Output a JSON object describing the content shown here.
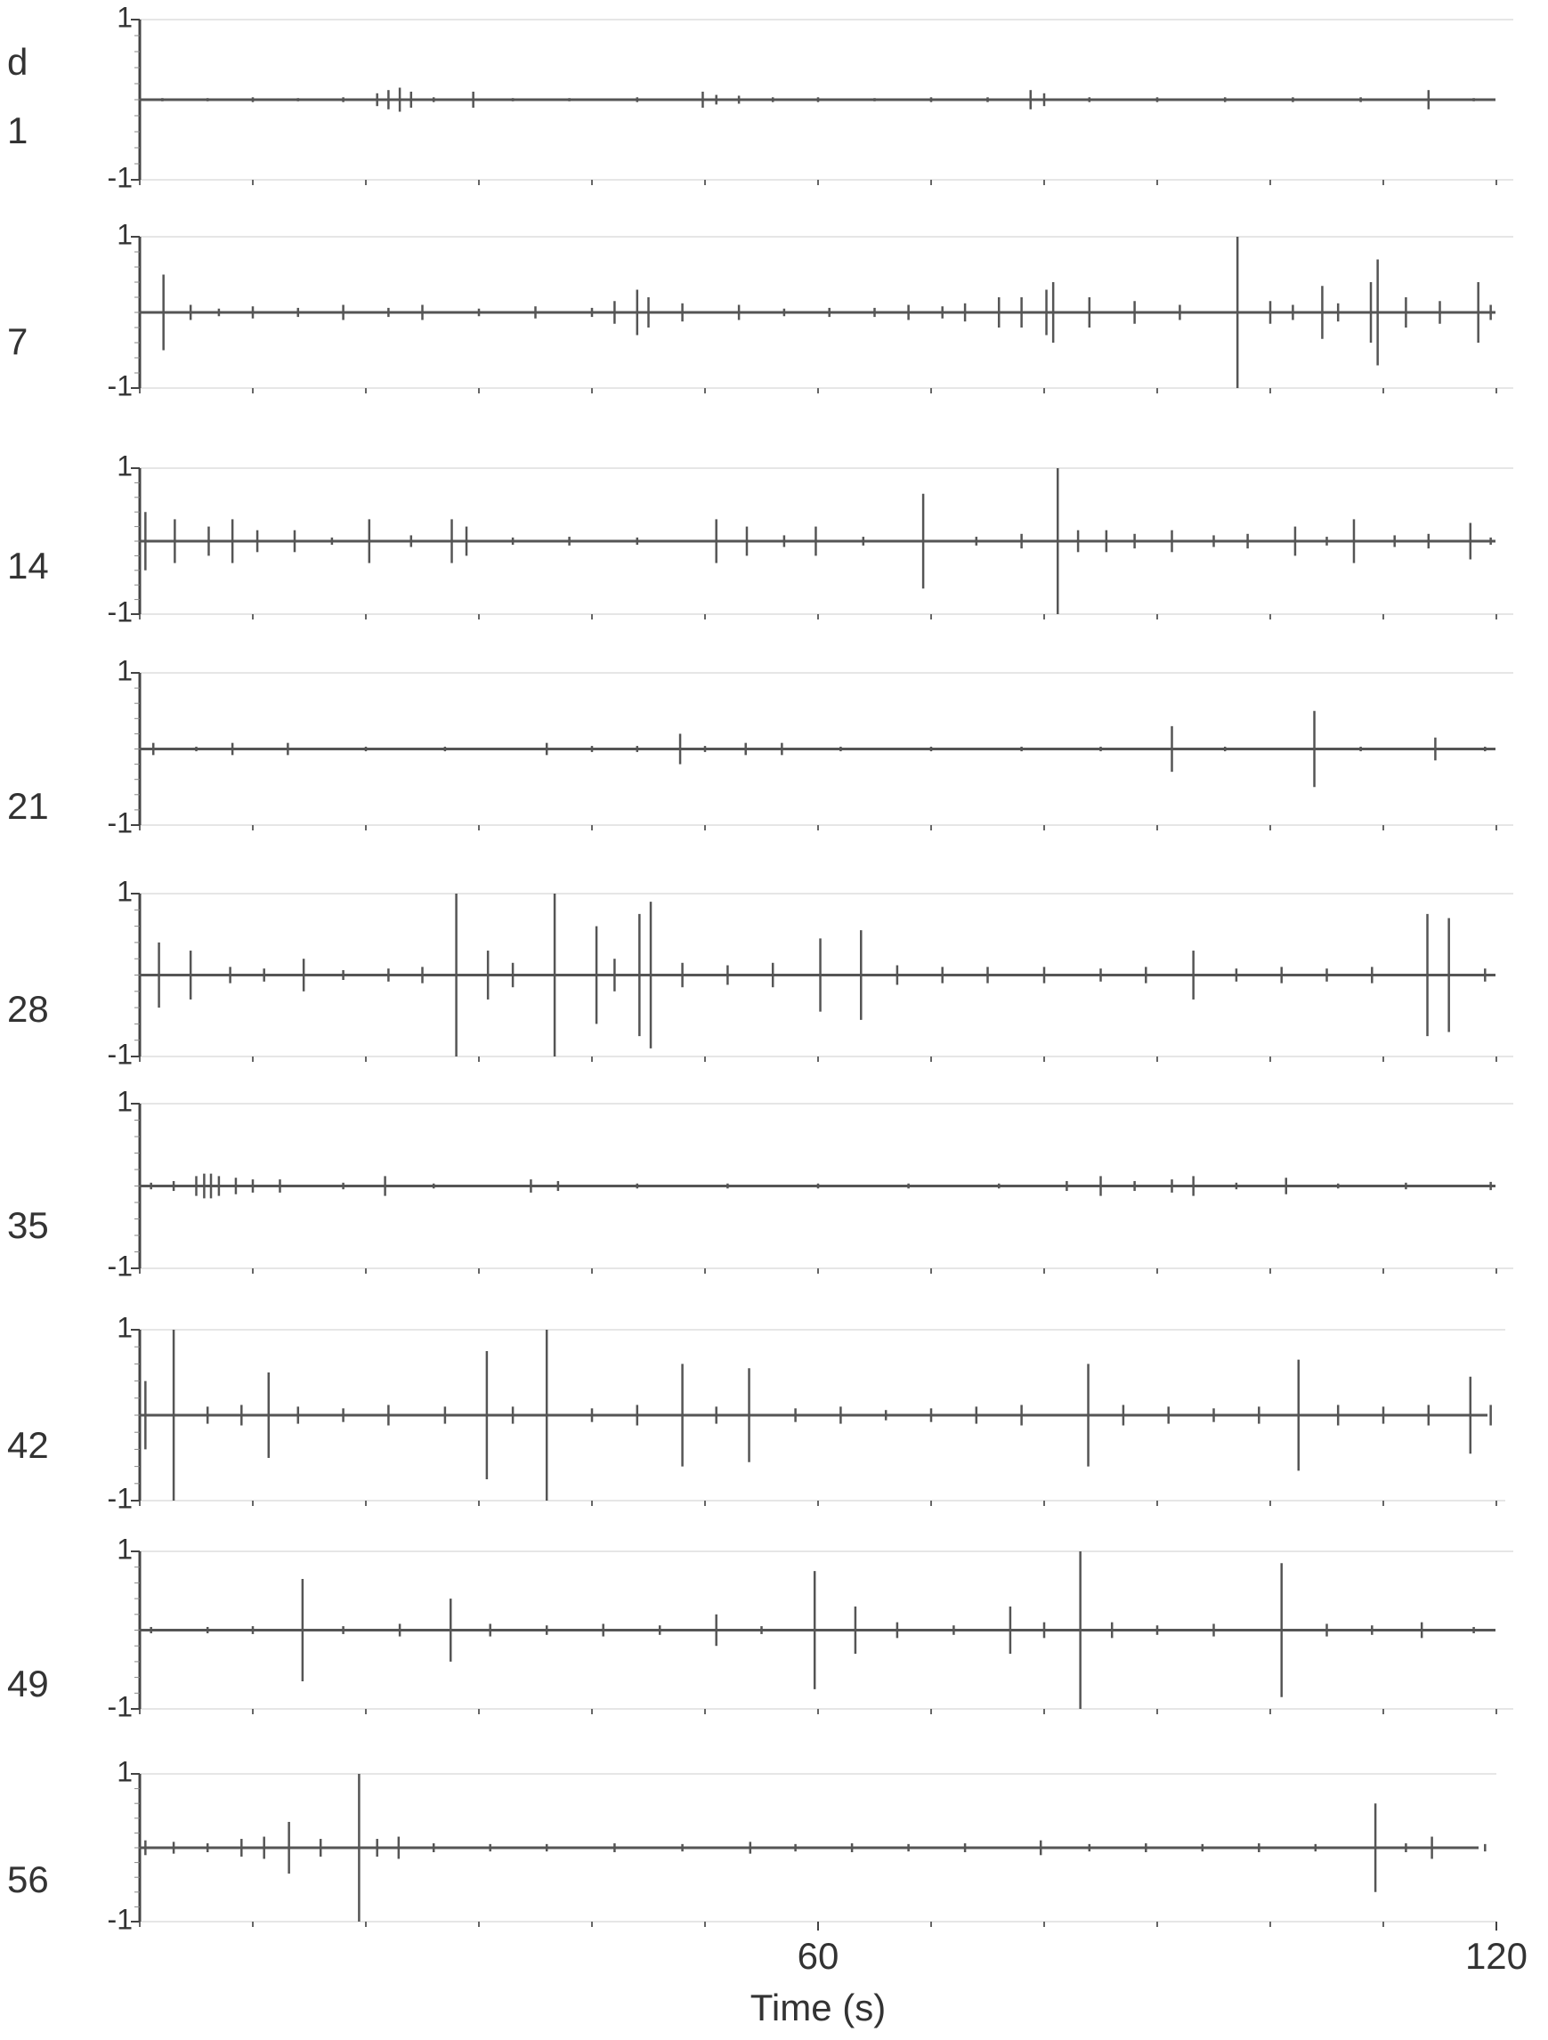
{
  "panel_label": "d",
  "chart_data": [
    {
      "type": "waveform",
      "title": "1",
      "color": "#555555",
      "xlim": [
        0,
        120
      ],
      "ylim": [
        -1,
        1
      ],
      "yticks": [
        -1,
        1
      ],
      "xminorticks": [
        0,
        10,
        20,
        30,
        40,
        50,
        60,
        70,
        80,
        90,
        100,
        110,
        120
      ],
      "x": [
        2,
        6,
        10,
        14,
        18,
        21,
        22,
        23,
        24,
        26,
        29.5,
        33,
        38,
        44,
        49.8,
        51,
        53,
        56,
        60,
        65,
        70,
        75,
        78.8,
        80,
        84,
        90,
        96,
        102,
        108,
        114,
        118
      ],
      "values": [
        0.02,
        0.02,
        0.03,
        0.02,
        0.03,
        0.08,
        0.12,
        0.15,
        0.1,
        0.03,
        0.1,
        0.02,
        0.02,
        0.03,
        0.1,
        0.06,
        0.05,
        0.03,
        0.03,
        0.02,
        0.03,
        0.03,
        0.12,
        0.08,
        0.03,
        0.03,
        0.03,
        0.03,
        0.03,
        0.12,
        0.02
      ]
    },
    {
      "type": "waveform",
      "title": "7",
      "color": "#555555",
      "xlim": [
        0,
        120
      ],
      "ylim": [
        -1,
        1
      ],
      "yticks": [
        -1,
        1
      ],
      "xminorticks": [
        0,
        10,
        20,
        30,
        40,
        50,
        60,
        70,
        80,
        90,
        100,
        110,
        120
      ],
      "x": [
        2.1,
        4.5,
        7,
        10,
        14,
        18,
        22,
        25,
        30,
        35,
        40,
        42,
        44,
        45,
        48,
        53,
        57,
        61,
        65,
        68,
        71,
        73,
        76,
        78,
        80.2,
        80.8,
        84,
        88,
        92,
        97.1,
        100,
        102,
        104.6,
        106,
        108.9,
        109.5,
        112,
        115,
        118.4,
        119.5
      ],
      "values": [
        0.5,
        0.1,
        0.05,
        0.08,
        0.06,
        0.1,
        0.06,
        0.1,
        0.05,
        0.08,
        0.06,
        0.15,
        0.3,
        0.2,
        0.12,
        0.1,
        0.05,
        0.06,
        0.06,
        0.1,
        0.08,
        0.12,
        0.2,
        0.2,
        0.3,
        0.4,
        0.2,
        0.15,
        0.1,
        1.0,
        0.15,
        0.1,
        0.35,
        0.12,
        0.4,
        0.7,
        0.2,
        0.15,
        0.4,
        0.1
      ]
    },
    {
      "type": "waveform",
      "title": "14",
      "color": "#555555",
      "xlim": [
        0,
        120
      ],
      "ylim": [
        -1,
        1
      ],
      "yticks": [
        -1,
        1
      ],
      "xminorticks": [
        0,
        10,
        20,
        30,
        40,
        50,
        60,
        70,
        80,
        90,
        100,
        110,
        120
      ],
      "x": [
        0.5,
        3.1,
        6.1,
        8.2,
        10.4,
        13.7,
        17,
        20.3,
        24,
        27.6,
        28.9,
        33,
        38,
        44,
        51,
        53.7,
        57,
        59.8,
        64,
        69.3,
        74,
        78,
        81.2,
        83,
        85.5,
        88,
        91.3,
        95,
        98,
        102.2,
        105,
        107.4,
        111,
        114,
        117.7,
        119.5
      ],
      "values": [
        0.4,
        0.3,
        0.2,
        0.3,
        0.15,
        0.15,
        0.05,
        0.3,
        0.08,
        0.3,
        0.2,
        0.05,
        0.06,
        0.05,
        0.3,
        0.2,
        0.08,
        0.2,
        0.06,
        0.65,
        0.06,
        0.1,
        1.0,
        0.15,
        0.15,
        0.1,
        0.15,
        0.08,
        0.1,
        0.2,
        0.06,
        0.3,
        0.08,
        0.1,
        0.25,
        0.05
      ]
    },
    {
      "type": "waveform",
      "title": "21",
      "color": "#555555",
      "xlim": [
        0,
        120
      ],
      "ylim": [
        -1,
        1
      ],
      "yticks": [
        -1,
        1
      ],
      "xminorticks": [
        0,
        10,
        20,
        30,
        40,
        50,
        60,
        70,
        80,
        90,
        100,
        110,
        120
      ],
      "x": [
        1.2,
        5,
        8.2,
        13.1,
        20,
        27,
        36,
        40,
        44,
        47.8,
        50,
        53.6,
        56.8,
        62,
        70,
        78,
        85,
        91.3,
        96,
        103.9,
        108,
        114.6,
        119
      ],
      "values": [
        0.08,
        0.03,
        0.08,
        0.08,
        0.03,
        0.03,
        0.08,
        0.04,
        0.04,
        0.2,
        0.04,
        0.08,
        0.08,
        0.03,
        0.03,
        0.03,
        0.03,
        0.3,
        0.03,
        0.5,
        0.03,
        0.15,
        0.03
      ]
    },
    {
      "type": "waveform",
      "title": "28",
      "color": "#555555",
      "xlim": [
        0,
        120
      ],
      "ylim": [
        -1,
        1
      ],
      "yticks": [
        -1,
        1
      ],
      "xminorticks": [
        0,
        10,
        20,
        30,
        40,
        50,
        60,
        70,
        80,
        90,
        100,
        110,
        120
      ],
      "x": [
        1.7,
        4.5,
        8,
        11,
        14.5,
        18,
        22,
        25,
        28,
        30.8,
        33,
        36.7,
        40.4,
        42,
        44.2,
        45.2,
        48,
        52,
        56,
        60.2,
        63.8,
        67,
        71,
        75,
        80,
        85,
        89,
        93.2,
        97,
        101,
        105,
        109,
        113.9,
        115.8,
        119
      ],
      "values": [
        0.4,
        0.3,
        0.1,
        0.08,
        0.2,
        0.06,
        0.08,
        0.1,
        1.0,
        0.3,
        0.15,
        1.0,
        0.6,
        0.2,
        0.75,
        0.9,
        0.15,
        0.12,
        0.15,
        0.45,
        0.55,
        0.12,
        0.1,
        0.1,
        0.1,
        0.08,
        0.1,
        0.3,
        0.08,
        0.1,
        0.08,
        0.1,
        0.75,
        0.7,
        0.08
      ]
    },
    {
      "type": "waveform",
      "title": "35",
      "color": "#555555",
      "xlim": [
        0,
        120
      ],
      "ylim": [
        -1,
        1
      ],
      "yticks": [
        -1,
        1
      ],
      "xminorticks": [
        0,
        10,
        20,
        30,
        40,
        50,
        60,
        70,
        80,
        90,
        100,
        110,
        120
      ],
      "x": [
        1,
        3,
        5,
        5.7,
        6.3,
        7,
        8.5,
        10,
        12.4,
        18,
        21.7,
        26,
        34.6,
        37,
        44,
        52,
        60,
        68,
        76,
        82,
        85,
        88,
        91.3,
        93.2,
        97,
        101.4,
        106,
        112,
        119.5
      ],
      "values": [
        0.04,
        0.06,
        0.12,
        0.15,
        0.15,
        0.12,
        0.1,
        0.08,
        0.08,
        0.04,
        0.12,
        0.03,
        0.08,
        0.06,
        0.03,
        0.03,
        0.03,
        0.03,
        0.03,
        0.06,
        0.12,
        0.06,
        0.08,
        0.12,
        0.04,
        0.1,
        0.03,
        0.04,
        0.05
      ]
    },
    {
      "type": "waveform",
      "title": "42",
      "color": "#555555",
      "xlim": [
        0,
        120
      ],
      "ylim": [
        -1,
        1
      ],
      "yticks": [
        -1,
        1
      ],
      "xminorticks": [
        0,
        10,
        20,
        30,
        40,
        50,
        60,
        70,
        80,
        90,
        100,
        110,
        120
      ],
      "x": [
        0.5,
        3,
        6,
        9,
        11.4,
        14,
        18,
        22,
        27,
        30.7,
        33,
        36,
        40,
        44,
        48,
        51,
        53.9,
        58,
        62,
        66,
        70,
        74,
        78,
        83.9,
        87,
        91,
        95,
        99,
        102.5,
        106,
        110,
        114,
        117.7,
        119.5
      ],
      "values": [
        0.4,
        1.0,
        0.1,
        0.12,
        0.5,
        0.1,
        0.08,
        0.12,
        0.1,
        0.75,
        0.1,
        1.0,
        0.08,
        0.12,
        0.6,
        0.1,
        0.55,
        0.08,
        0.1,
        0.06,
        0.08,
        0.1,
        0.12,
        0.6,
        0.12,
        0.1,
        0.08,
        0.1,
        0.65,
        0.12,
        0.1,
        0.12,
        0.45,
        0.12
      ]
    },
    {
      "type": "waveform",
      "title": "49",
      "color": "#555555",
      "xlim": [
        0,
        120
      ],
      "ylim": [
        -1,
        1
      ],
      "yticks": [
        -1,
        1
      ],
      "xminorticks": [
        0,
        10,
        20,
        30,
        40,
        50,
        60,
        70,
        80,
        90,
        100,
        110,
        120
      ],
      "x": [
        1,
        6,
        10,
        14.4,
        18,
        23,
        27.5,
        31,
        36,
        41,
        46,
        51,
        55,
        59.7,
        63.3,
        67,
        72,
        77,
        80,
        83.2,
        86,
        90,
        95,
        101,
        105,
        109,
        113.4,
        118
      ],
      "values": [
        0.04,
        0.04,
        0.05,
        0.65,
        0.05,
        0.08,
        0.4,
        0.08,
        0.06,
        0.08,
        0.06,
        0.2,
        0.05,
        0.75,
        0.3,
        0.1,
        0.06,
        0.3,
        0.1,
        1.0,
        0.1,
        0.06,
        0.08,
        0.85,
        0.08,
        0.06,
        0.1,
        0.04
      ]
    },
    {
      "type": "waveform",
      "title": "56",
      "color": "#555555",
      "xlim": [
        0,
        120
      ],
      "ylim": [
        -1,
        1
      ],
      "yticks": [
        -1,
        1
      ],
      "xminorticks": [
        0,
        10,
        20,
        30,
        40,
        50,
        60,
        70,
        80,
        90,
        100,
        110,
        120
      ],
      "x": [
        0.5,
        3,
        6,
        9,
        11,
        13.2,
        16,
        19.4,
        21,
        22.9,
        26,
        31,
        36,
        42,
        48,
        54,
        58,
        63,
        68,
        73,
        79.7,
        84,
        89,
        94,
        99,
        104,
        109.3,
        112,
        114.3,
        119
      ],
      "values": [
        0.1,
        0.08,
        0.06,
        0.12,
        0.15,
        0.35,
        0.12,
        1.0,
        0.12,
        0.15,
        0.06,
        0.05,
        0.05,
        0.06,
        0.05,
        0.08,
        0.05,
        0.06,
        0.05,
        0.06,
        0.1,
        0.05,
        0.06,
        0.05,
        0.06,
        0.05,
        0.6,
        0.06,
        0.15,
        0.05
      ],
      "xticks": [
        60,
        120
      ],
      "xlabel": "Time (s)"
    }
  ]
}
